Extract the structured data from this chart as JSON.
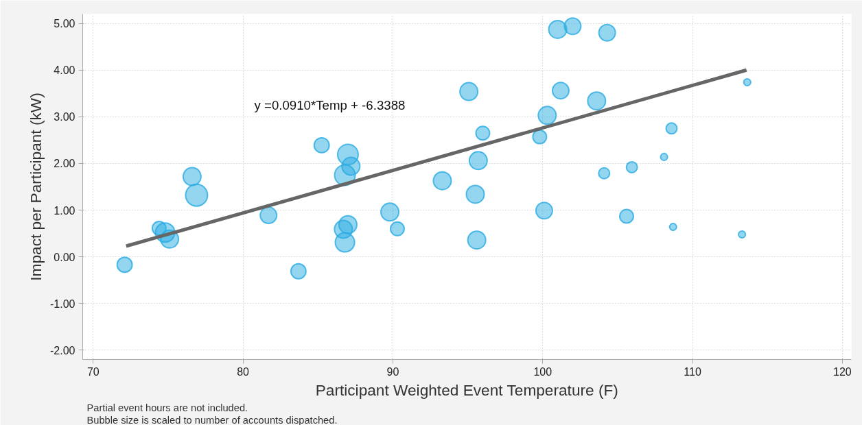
{
  "chart_data": {
    "type": "bubble",
    "xlabel": "Participant Weighted Event Temperature (F)",
    "ylabel": "Impact per Participant (kW)",
    "series": [
      {
        "color": "#29abe2",
        "x": [
          72.1,
          74.4,
          74.8,
          75.1,
          76.6,
          76.9,
          81.7,
          83.7,
          85.25,
          86.7,
          87.0,
          86.8,
          87.0,
          87.2,
          86.8,
          89.8,
          90.3,
          93.3,
          95.07,
          95.5,
          95.6,
          95.7,
          96.0,
          99.8,
          100.1,
          100.3,
          101.0,
          101.2,
          102.0,
          103.6,
          104.1,
          104.3,
          105.6,
          105.95,
          108.1,
          108.6,
          108.7,
          113.3,
          113.65
        ],
        "values": [
          -0.17,
          0.61,
          0.52,
          0.38,
          1.72,
          1.32,
          0.89,
          -0.31,
          2.39,
          0.59,
          0.69,
          0.31,
          2.19,
          1.94,
          1.75,
          0.96,
          0.6,
          1.63,
          3.54,
          1.34,
          0.36,
          2.06,
          2.65,
          2.57,
          0.99,
          3.03,
          4.87,
          3.56,
          4.94,
          3.34,
          1.79,
          4.8,
          0.87,
          1.92,
          2.14,
          2.75,
          0.64,
          0.48,
          3.74
        ],
        "sizes": [
          0.47,
          0.39,
          0.77,
          0.66,
          0.66,
          1,
          0.56,
          0.47,
          0.47,
          0.66,
          0.66,
          0.77,
          0.88,
          0.66,
          0.88,
          0.66,
          0.39,
          0.66,
          0.66,
          0.66,
          0.66,
          0.66,
          0.39,
          0.39,
          0.56,
          0.66,
          0.66,
          0.56,
          0.56,
          0.66,
          0.25,
          0.56,
          0.39,
          0.25,
          0.1,
          0.25,
          0.1,
          0.1,
          0.1
        ]
      },
      {
        "type": "line",
        "color": "#666666",
        "x": [
          72.2,
          113.6
        ],
        "values": [
          0.23,
          4.0
        ]
      }
    ],
    "xlim": [
      69.3,
      120.6
    ],
    "xticks": [
      70,
      80,
      90,
      100,
      110,
      120
    ],
    "ylim": [
      -2.2,
      5.2
    ],
    "yticks": [
      {
        "value": -2,
        "label": "-2.00"
      },
      {
        "value": -1,
        "label": "-1.00"
      },
      {
        "value": 0,
        "label": "0.00"
      },
      {
        "value": 1,
        "label": "1.00"
      },
      {
        "value": 2,
        "label": "2.00"
      },
      {
        "value": 3,
        "label": "3.00"
      },
      {
        "value": 4,
        "label": "4.00"
      },
      {
        "value": 5,
        "label": "5.00"
      }
    ],
    "grid": true,
    "line_style": "solid",
    "annotations": [
      "y =0.0910*Temp + -6.3388",
      "Partial event hours are not included.",
      "Bubble size is scaled to number of accounts dispatched."
    ]
  }
}
